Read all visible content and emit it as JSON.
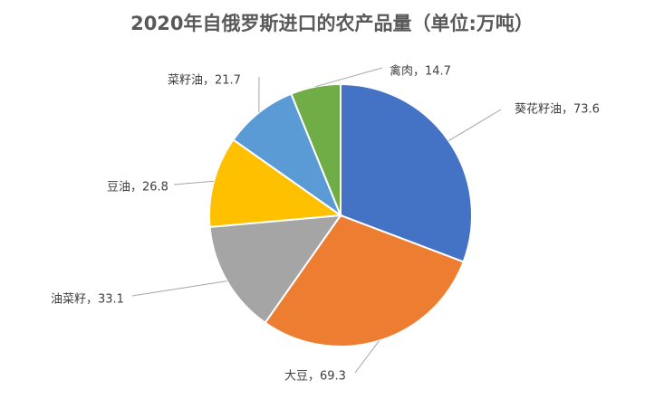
{
  "chart_data": {
    "type": "pie",
    "title": "2020年自俄罗斯进口的农产品量（单位:万吨）",
    "slices": [
      {
        "label": "葵花籽油",
        "value": 73.6,
        "display": "葵花籽油，73.6",
        "color": "#4472c4"
      },
      {
        "label": "大豆",
        "value": 69.3,
        "display": "大豆，69.3",
        "color": "#ed7d31"
      },
      {
        "label": "油菜籽",
        "value": 33.1,
        "display": "油菜籽，33.1",
        "color": "#a5a5a5"
      },
      {
        "label": "豆油",
        "value": 26.8,
        "display": "豆油，26.8",
        "color": "#ffc000"
      },
      {
        "label": "菜籽油",
        "value": 21.7,
        "display": "菜籽油，21.7",
        "color": "#5b9bd5"
      },
      {
        "label": "禽肉",
        "value": 14.7,
        "display": "禽肉，14.7",
        "color": "#70ad47"
      }
    ],
    "start_angle": "12 o'clock",
    "direction": "clockwise",
    "legend": "none",
    "data_labels": "outside with leader lines"
  }
}
